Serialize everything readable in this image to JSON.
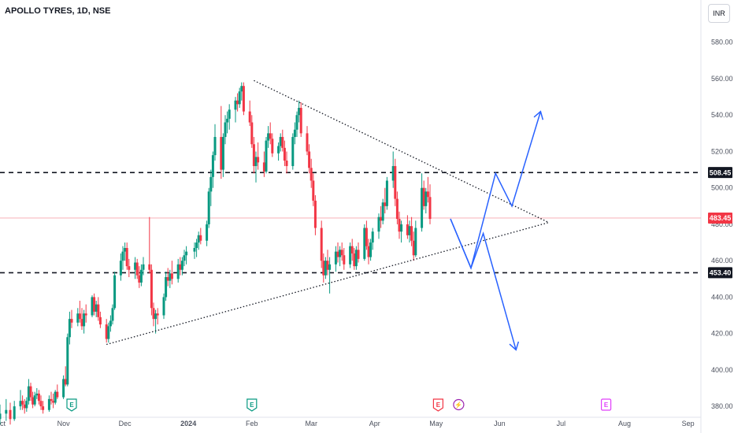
{
  "header": {
    "title": "APOLLO TYRES, 1D, NSE"
  },
  "currency_button": "INR",
  "colors": {
    "up": "#089981",
    "down": "#f23645",
    "line": "#2962ff",
    "text": "#131722",
    "axis_text": "#4a4f5c"
  },
  "chart_data": {
    "type": "candlestick",
    "title": "APOLLO TYRES, 1D, NSE",
    "currency": "INR",
    "ylim": [
      374,
      592
    ],
    "y_ticks": [
      380,
      400,
      420,
      440,
      460,
      480,
      500,
      520,
      540,
      560,
      580
    ],
    "x_ticks": [
      "Oct",
      "Nov",
      "Dec",
      "2024",
      "Feb",
      "Mar",
      "Apr",
      "May",
      "Jun",
      "Jul",
      "Aug",
      "Sep"
    ],
    "x_tick_days": [
      0,
      31,
      61,
      92,
      123,
      152,
      183,
      213,
      244,
      274,
      305,
      336
    ],
    "price_labels": [
      {
        "value": 508.45,
        "text": "508.45",
        "style": "dark"
      },
      {
        "value": 483.45,
        "text": "483.45",
        "style": "red"
      },
      {
        "value": 453.4,
        "text": "453.40",
        "style": "dark"
      }
    ],
    "horizontal_levels": [
      508.45,
      453.4
    ],
    "current_price_line": 483.45,
    "trendlines": [
      {
        "points": [
          [
            52,
            414
          ],
          [
            268,
            481
          ]
        ],
        "style": "dotted"
      },
      {
        "points": [
          [
            124,
            559
          ],
          [
            268,
            481
          ]
        ],
        "style": "dotted"
      }
    ],
    "projections": [
      {
        "points": [
          [
            220,
            483
          ],
          [
            230,
            456
          ],
          [
            242,
            508
          ],
          [
            250,
            490
          ],
          [
            264,
            542
          ]
        ]
      },
      {
        "points": [
          [
            220,
            483
          ],
          [
            230,
            456
          ],
          [
            236,
            475
          ],
          [
            252,
            411
          ]
        ]
      }
    ],
    "events": [
      {
        "day": 35,
        "label": "E",
        "color": "#089981",
        "shape": "tag"
      },
      {
        "day": 123,
        "label": "E",
        "color": "#089981",
        "shape": "tag"
      },
      {
        "day": 214,
        "label": "E",
        "color": "#f23645",
        "shape": "tag"
      },
      {
        "day": 224,
        "label": "⚡",
        "color": "#9c27b0",
        "shape": "circle"
      },
      {
        "day": 296,
        "label": "E",
        "color": "#e040fb",
        "shape": "box"
      }
    ],
    "candles": [
      [
        0,
        373,
        381,
        370,
        376
      ],
      [
        3,
        376,
        384,
        372,
        378
      ],
      [
        5,
        378,
        382,
        370,
        373
      ],
      [
        7,
        373,
        383,
        372,
        380
      ],
      [
        10,
        380,
        389,
        378,
        383
      ],
      [
        11,
        383,
        386,
        378,
        381
      ],
      [
        12,
        381,
        384,
        376,
        379
      ],
      [
        13,
        379,
        385,
        377,
        383
      ],
      [
        14,
        383,
        395,
        381,
        391
      ],
      [
        15,
        391,
        393,
        383,
        385
      ],
      [
        16,
        385,
        388,
        379,
        381
      ],
      [
        17,
        381,
        388,
        380,
        386
      ],
      [
        18,
        386,
        390,
        384,
        387
      ],
      [
        19,
        387,
        389,
        381,
        383
      ],
      [
        20,
        383,
        386,
        378,
        380
      ],
      [
        21,
        380,
        383,
        376,
        378
      ],
      [
        24,
        378,
        386,
        377,
        384
      ],
      [
        25,
        384,
        388,
        381,
        383
      ],
      [
        26,
        383,
        387,
        379,
        382
      ],
      [
        27,
        382,
        389,
        381,
        388
      ],
      [
        28,
        388,
        392,
        384,
        385
      ],
      [
        31,
        385,
        397,
        384,
        395
      ],
      [
        32,
        395,
        402,
        391,
        392
      ],
      [
        33,
        392,
        420,
        391,
        418
      ],
      [
        34,
        418,
        432,
        414,
        428
      ],
      [
        35,
        428,
        433,
        423,
        426
      ],
      [
        38,
        426,
        434,
        424,
        431
      ],
      [
        39,
        431,
        438,
        426,
        428
      ],
      [
        40,
        428,
        434,
        422,
        424
      ],
      [
        41,
        424,
        433,
        420,
        431
      ],
      [
        42,
        431,
        436,
        426,
        430
      ],
      [
        45,
        430,
        441,
        429,
        440
      ],
      [
        46,
        440,
        442,
        430,
        432
      ],
      [
        47,
        432,
        438,
        429,
        436
      ],
      [
        48,
        436,
        440,
        427,
        429
      ],
      [
        49,
        429,
        432,
        423,
        425
      ],
      [
        52,
        425,
        428,
        415,
        417
      ],
      [
        53,
        417,
        426,
        415,
        424
      ],
      [
        54,
        424,
        430,
        421,
        427
      ],
      [
        55,
        427,
        436,
        425,
        434
      ],
      [
        56,
        434,
        454,
        433,
        452
      ],
      [
        59,
        452,
        464,
        449,
        460
      ],
      [
        60,
        460,
        468,
        455,
        465
      ],
      [
        61,
        465,
        470,
        460,
        467
      ],
      [
        62,
        467,
        470,
        455,
        457
      ],
      [
        63,
        457,
        461,
        451,
        455
      ],
      [
        66,
        455,
        462,
        450,
        459
      ],
      [
        67,
        459,
        461,
        450,
        452
      ],
      [
        68,
        452,
        457,
        445,
        448
      ],
      [
        69,
        448,
        458,
        446,
        455
      ],
      [
        70,
        455,
        462,
        452,
        458
      ],
      [
        73,
        458,
        484,
        453,
        455
      ],
      [
        74,
        455,
        458,
        430,
        434
      ],
      [
        75,
        434,
        437,
        424,
        428
      ],
      [
        76,
        428,
        433,
        420,
        431
      ],
      [
        77,
        431,
        434,
        425,
        430
      ],
      [
        80,
        430,
        442,
        428,
        440
      ],
      [
        81,
        440,
        454,
        438,
        451
      ],
      [
        82,
        451,
        456,
        446,
        449
      ],
      [
        83,
        449,
        455,
        445,
        453
      ],
      [
        84,
        453,
        460,
        447,
        450
      ],
      [
        87,
        450,
        461,
        448,
        458
      ],
      [
        88,
        458,
        462,
        452,
        455
      ],
      [
        89,
        455,
        462,
        452,
        460
      ],
      [
        90,
        460,
        466,
        457,
        463
      ],
      [
        91,
        463,
        468,
        458,
        465
      ],
      [
        95,
        465,
        470,
        461,
        467
      ],
      [
        96,
        467,
        472,
        462,
        470
      ],
      [
        97,
        470,
        476,
        466,
        474
      ],
      [
        98,
        474,
        478,
        469,
        471
      ],
      [
        101,
        471,
        482,
        468,
        480
      ],
      [
        102,
        480,
        500,
        478,
        498
      ],
      [
        103,
        498,
        510,
        490,
        506
      ],
      [
        104,
        506,
        520,
        500,
        518
      ],
      [
        105,
        518,
        535,
        515,
        528
      ],
      [
        108,
        528,
        545,
        505,
        510
      ],
      [
        109,
        510,
        530,
        506,
        528
      ],
      [
        110,
        528,
        540,
        524,
        536
      ],
      [
        111,
        536,
        542,
        530,
        538
      ],
      [
        112,
        538,
        546,
        532,
        543
      ],
      [
        115,
        543,
        550,
        536,
        548
      ],
      [
        116,
        548,
        552,
        542,
        546
      ],
      [
        117,
        546,
        555,
        544,
        553
      ],
      [
        118,
        553,
        558,
        548,
        556
      ],
      [
        119,
        556,
        558,
        540,
        542
      ],
      [
        122,
        542,
        548,
        534,
        536
      ],
      [
        123,
        536,
        540,
        522,
        524
      ],
      [
        124,
        524,
        528,
        508,
        512
      ],
      [
        125,
        512,
        520,
        503,
        517
      ],
      [
        126,
        517,
        525,
        510,
        514
      ],
      [
        129,
        514,
        520,
        506,
        509
      ],
      [
        130,
        509,
        528,
        508,
        526
      ],
      [
        131,
        526,
        534,
        522,
        530
      ],
      [
        132,
        530,
        536,
        524,
        527
      ],
      [
        133,
        527,
        530,
        517,
        519
      ],
      [
        136,
        519,
        525,
        515,
        523
      ],
      [
        137,
        523,
        530,
        520,
        528
      ],
      [
        138,
        528,
        532,
        520,
        522
      ],
      [
        139,
        522,
        526,
        512,
        515
      ],
      [
        140,
        515,
        520,
        508,
        512
      ],
      [
        143,
        512,
        530,
        510,
        528
      ],
      [
        144,
        528,
        536,
        524,
        532
      ],
      [
        145,
        532,
        542,
        528,
        540
      ],
      [
        146,
        540,
        548,
        536,
        544
      ],
      [
        147,
        544,
        547,
        528,
        530
      ],
      [
        150,
        530,
        534,
        518,
        520
      ],
      [
        151,
        520,
        524,
        508,
        511
      ],
      [
        152,
        511,
        516,
        500,
        504
      ],
      [
        153,
        504,
        508,
        490,
        493
      ],
      [
        154,
        493,
        496,
        474,
        478
      ],
      [
        157,
        478,
        482,
        456,
        460
      ],
      [
        158,
        460,
        464,
        448,
        452
      ],
      [
        159,
        452,
        462,
        450,
        460
      ],
      [
        160,
        460,
        466,
        452,
        455
      ],
      [
        161,
        455,
        462,
        442,
        458
      ],
      [
        164,
        458,
        468,
        454,
        465
      ],
      [
        165,
        465,
        470,
        459,
        462
      ],
      [
        166,
        462,
        468,
        457,
        466
      ],
      [
        167,
        466,
        470,
        460,
        463
      ],
      [
        168,
        463,
        467,
        455,
        458
      ],
      [
        171,
        458,
        470,
        456,
        468
      ],
      [
        172,
        468,
        472,
        460,
        464
      ],
      [
        173,
        464,
        467,
        455,
        457
      ],
      [
        174,
        457,
        468,
        455,
        466
      ],
      [
        175,
        466,
        470,
        459,
        461
      ],
      [
        178,
        461,
        480,
        460,
        478
      ],
      [
        179,
        478,
        482,
        466,
        468
      ],
      [
        180,
        468,
        472,
        458,
        462
      ],
      [
        181,
        462,
        472,
        460,
        470
      ],
      [
        182,
        470,
        478,
        466,
        476
      ],
      [
        185,
        476,
        486,
        472,
        484
      ],
      [
        186,
        484,
        490,
        478,
        482
      ],
      [
        187,
        482,
        494,
        480,
        492
      ],
      [
        188,
        492,
        500,
        486,
        490
      ],
      [
        189,
        490,
        506,
        488,
        504
      ],
      [
        192,
        504,
        520,
        500,
        512
      ],
      [
        193,
        512,
        516,
        490,
        494
      ],
      [
        194,
        494,
        498,
        480,
        483
      ],
      [
        195,
        483,
        487,
        472,
        476
      ],
      [
        196,
        476,
        482,
        470,
        480
      ],
      [
        199,
        480,
        485,
        472,
        474
      ],
      [
        200,
        474,
        482,
        470,
        479
      ],
      [
        201,
        479,
        484,
        468,
        471
      ],
      [
        202,
        471,
        476,
        460,
        463
      ],
      [
        203,
        463,
        482,
        462,
        478
      ],
      [
        206,
        478,
        508,
        476,
        500
      ],
      [
        207,
        500,
        504,
        488,
        490
      ],
      [
        208,
        490,
        500,
        486,
        498
      ],
      [
        209,
        498,
        506,
        492,
        495
      ],
      [
        210,
        495,
        502,
        480,
        483
      ]
    ]
  }
}
